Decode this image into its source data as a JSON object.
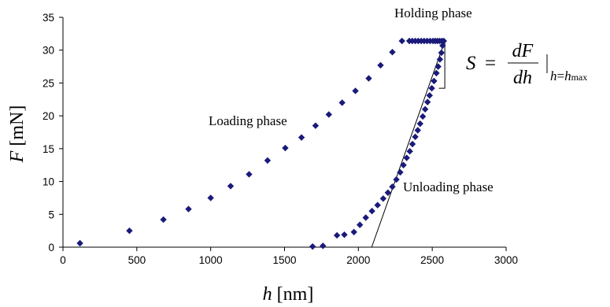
{
  "chart_data": {
    "type": "scatter",
    "xlabel": {
      "symbol": "h",
      "unit": "[nm]"
    },
    "ylabel": {
      "symbol": "F",
      "unit": "[mN]"
    },
    "xlim": [
      0,
      3000
    ],
    "ylim": [
      0,
      35
    ],
    "xticks": [
      0,
      500,
      1000,
      1500,
      2000,
      2500,
      3000
    ],
    "yticks": [
      0,
      5,
      10,
      15,
      20,
      25,
      30,
      35
    ],
    "grid": false,
    "legend": "none",
    "marker": {
      "shape": "diamond",
      "color": "#1a1a7a"
    },
    "annotations": {
      "holding": "Holding phase",
      "loading": "Loading phase",
      "unloading": "Unloading phase",
      "formula": {
        "lhs": "S",
        "equals": "=",
        "num": "dF",
        "den": "dh",
        "sub_h": "h",
        "sub_eq": "=",
        "sub_hmax": "h",
        "sub_max": "max"
      }
    },
    "series": [
      {
        "values": [
          {
            "x": 115,
            "y": 0.6
          },
          {
            "x": 450,
            "y": 2.5
          },
          {
            "x": 680,
            "y": 4.2
          },
          {
            "x": 850,
            "y": 5.8
          },
          {
            "x": 1000,
            "y": 7.5
          },
          {
            "x": 1135,
            "y": 9.3
          },
          {
            "x": 1260,
            "y": 11.1
          },
          {
            "x": 1385,
            "y": 13.2
          },
          {
            "x": 1505,
            "y": 15.1
          },
          {
            "x": 1615,
            "y": 16.7
          },
          {
            "x": 1710,
            "y": 18.5
          },
          {
            "x": 1800,
            "y": 20.2
          },
          {
            "x": 1890,
            "y": 22.0
          },
          {
            "x": 1980,
            "y": 23.8
          },
          {
            "x": 2070,
            "y": 25.7
          },
          {
            "x": 2150,
            "y": 27.7
          },
          {
            "x": 2230,
            "y": 29.7
          },
          {
            "x": 2295,
            "y": 31.4
          },
          {
            "x": 2345,
            "y": 31.4
          },
          {
            "x": 2365,
            "y": 31.4
          },
          {
            "x": 2385,
            "y": 31.4
          },
          {
            "x": 2405,
            "y": 31.4
          },
          {
            "x": 2425,
            "y": 31.4
          },
          {
            "x": 2445,
            "y": 31.4
          },
          {
            "x": 2465,
            "y": 31.4
          },
          {
            "x": 2485,
            "y": 31.4
          },
          {
            "x": 2505,
            "y": 31.4
          },
          {
            "x": 2520,
            "y": 31.4
          },
          {
            "x": 2535,
            "y": 31.4
          },
          {
            "x": 2550,
            "y": 31.4
          },
          {
            "x": 2565,
            "y": 31.4
          },
          {
            "x": 2578,
            "y": 31.4
          },
          {
            "x": 2570,
            "y": 30.7
          },
          {
            "x": 2562,
            "y": 29.6
          },
          {
            "x": 2552,
            "y": 28.6
          },
          {
            "x": 2540,
            "y": 27.5
          },
          {
            "x": 2528,
            "y": 26.5
          },
          {
            "x": 2512,
            "y": 25.3
          },
          {
            "x": 2497,
            "y": 24.2
          },
          {
            "x": 2482,
            "y": 23.1
          },
          {
            "x": 2468,
            "y": 22.1
          },
          {
            "x": 2452,
            "y": 21.0
          },
          {
            "x": 2436,
            "y": 19.9
          },
          {
            "x": 2418,
            "y": 18.8
          },
          {
            "x": 2402,
            "y": 17.8
          },
          {
            "x": 2385,
            "y": 16.8
          },
          {
            "x": 2366,
            "y": 15.7
          },
          {
            "x": 2348,
            "y": 14.6
          },
          {
            "x": 2327,
            "y": 13.6
          },
          {
            "x": 2305,
            "y": 12.5
          },
          {
            "x": 2283,
            "y": 11.4
          },
          {
            "x": 2257,
            "y": 10.3
          },
          {
            "x": 2230,
            "y": 9.2
          },
          {
            "x": 2200,
            "y": 8.3
          },
          {
            "x": 2168,
            "y": 7.4
          },
          {
            "x": 2130,
            "y": 6.4
          },
          {
            "x": 2092,
            "y": 5.5
          },
          {
            "x": 2050,
            "y": 4.5
          },
          {
            "x": 2010,
            "y": 3.4
          },
          {
            "x": 1970,
            "y": 2.3
          },
          {
            "x": 1905,
            "y": 1.9
          },
          {
            "x": 1855,
            "y": 1.8
          },
          {
            "x": 1760,
            "y": 0.2
          },
          {
            "x": 1690,
            "y": 0.1
          }
        ]
      }
    ],
    "tangent": {
      "from": {
        "x": 2090,
        "y": 0
      },
      "to": {
        "x": 2585,
        "y": 31.4
      }
    },
    "slope_triangle": {
      "x_left": 2545,
      "x_right": 2585,
      "y_top": 31.4,
      "y_bottom": 24.2
    }
  }
}
